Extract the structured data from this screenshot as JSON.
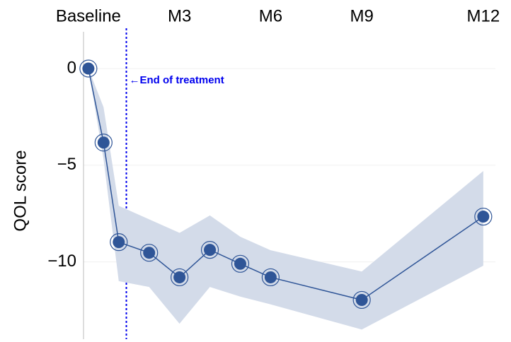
{
  "chart_data": {
    "type": "line",
    "ylabel": "QOL score",
    "annotation": {
      "text": "←End of treatment",
      "x": 1.25,
      "color": "#0000ee"
    },
    "xlim": [
      -0.16,
      13.4
    ],
    "ylim": [
      -14,
      1.9
    ],
    "xticks": [
      {
        "value": 0,
        "label": "Baseline"
      },
      {
        "value": 3,
        "label": "M3"
      },
      {
        "value": 6,
        "label": "M6"
      },
      {
        "value": 9,
        "label": "M9"
      },
      {
        "value": 13,
        "label": "M12"
      }
    ],
    "yticks": [
      {
        "value": 0,
        "label": "0"
      },
      {
        "value": -5,
        "label": "−5"
      },
      {
        "value": -10,
        "label": "−10"
      }
    ],
    "grid": true,
    "series": [
      {
        "color": "#2f5597",
        "band_color": "#d3dbe9",
        "x": [
          0,
          0.5,
          1,
          2,
          3,
          4,
          5,
          6,
          9,
          13
        ],
        "values": [
          0,
          -3.83,
          -8.98,
          -9.53,
          -10.8,
          -9.38,
          -10.1,
          -10.8,
          -11.97,
          -7.66
        ],
        "upper": [
          0,
          -2,
          -7.1,
          -7.8,
          -8.5,
          -7.6,
          -8.7,
          -9.4,
          -10.5,
          -5.3
        ],
        "lower": [
          0,
          -4.7,
          -11,
          -11.3,
          -13.2,
          -11.3,
          -11.8,
          -12.2,
          -13.5,
          -10.2
        ]
      }
    ]
  }
}
